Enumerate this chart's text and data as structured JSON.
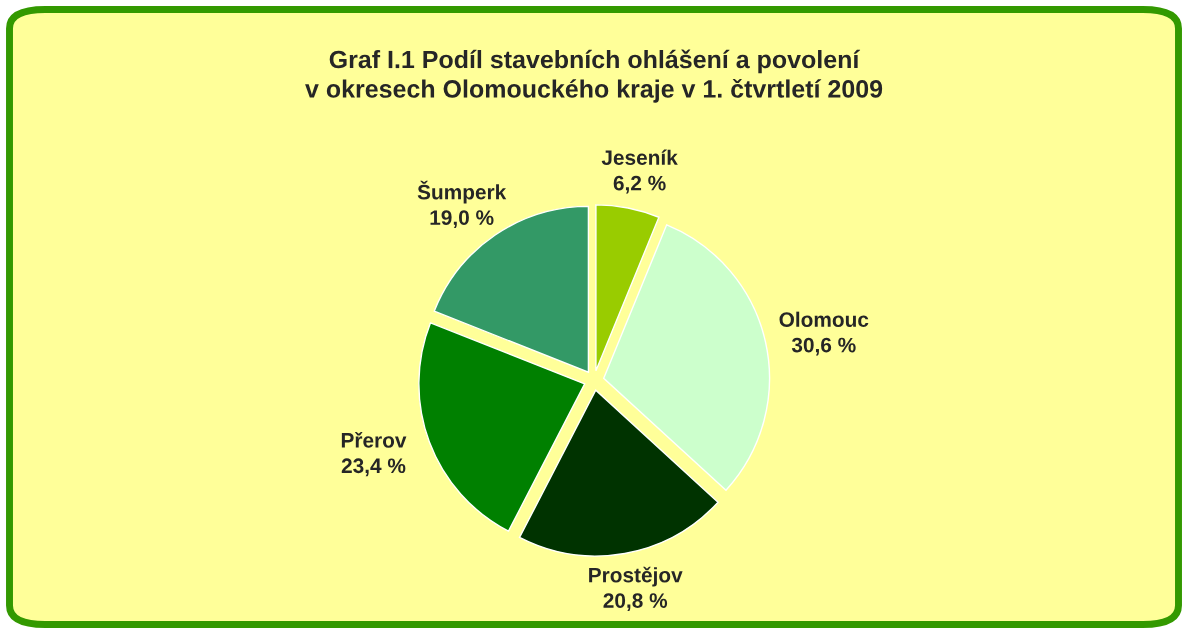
{
  "chart_data": {
    "type": "pie",
    "title": "Graf I.1 Podíl stavebních ohlášení a povolení\nv okresech Olomouckého kraje v 1. čtvrtletí 2009",
    "categories": [
      "Jeseník",
      "Olomouc",
      "Prostějov",
      "Přerov",
      "Šumperk"
    ],
    "values": [
      6.2,
      30.6,
      20.8,
      23.4,
      19.0
    ],
    "value_labels": [
      "6,2 %",
      "30,6 %",
      "20,8 %",
      "23,4 %",
      "19,0 %"
    ],
    "colors": [
      "#99cc00",
      "#ccffcc",
      "#003300",
      "#008000",
      "#339966"
    ]
  }
}
